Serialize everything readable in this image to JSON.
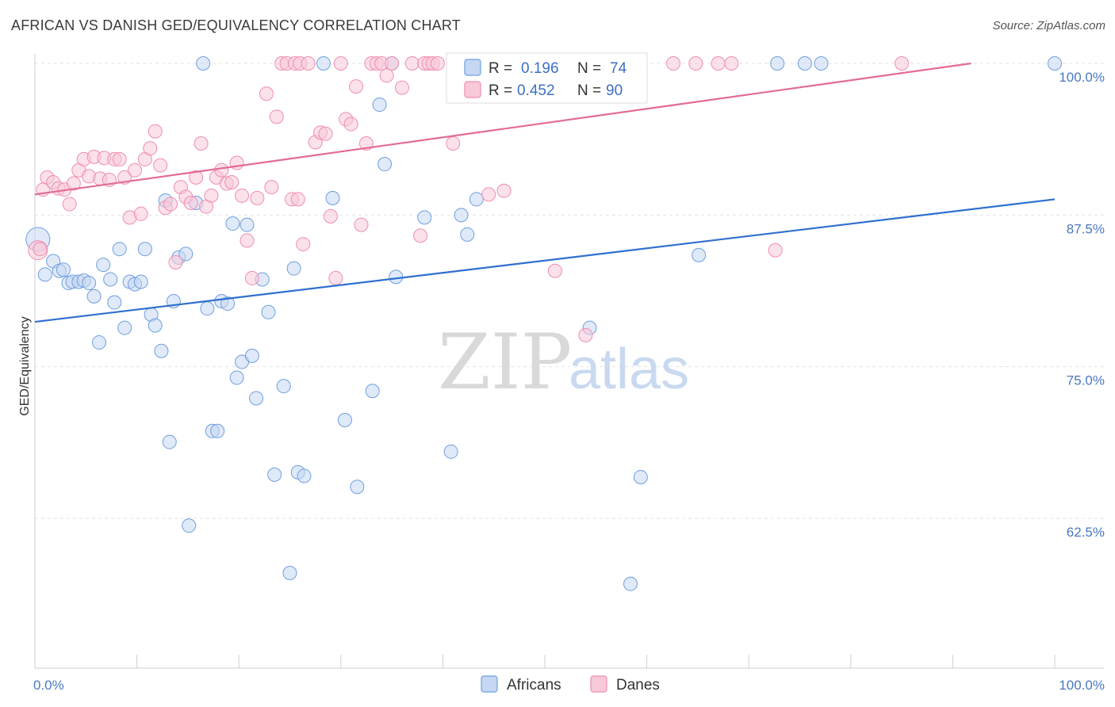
{
  "title": "AFRICAN VS DANISH GED/EQUIVALENCY CORRELATION CHART",
  "source": "Source: ZipAtlas.com",
  "watermark": {
    "zip": "ZIP",
    "atlas": "atlas"
  },
  "colors": {
    "africans": "#6f9fe0",
    "danes": "#f08db0",
    "africans_line": "#2f6fd0",
    "danes_line": "#e46b95",
    "tick": "#4a78c2"
  },
  "chart_data": {
    "type": "scatter",
    "title": "AFRICAN VS DANISH GED/EQUIVALENCY CORRELATION CHART",
    "xlabel": "",
    "ylabel": "GED/Equivalency",
    "xlim": [
      0,
      100
    ],
    "ylim": [
      50,
      101
    ],
    "x_tick_labels": [
      {
        "value": 0,
        "label": "0.0%"
      },
      {
        "value": 100,
        "label": "100.0%"
      }
    ],
    "y_tick_labels": [
      {
        "value": 100,
        "label": "100.0%"
      },
      {
        "value": 87.5,
        "label": "87.5%"
      },
      {
        "value": 75,
        "label": "75.0%"
      },
      {
        "value": 62.5,
        "label": "62.5%"
      }
    ],
    "grid": true,
    "legend_position": "top-center",
    "legend": [
      {
        "series": "Africans",
        "r_label": "R =",
        "r": "0.196",
        "n_label": "N =",
        "n": "74"
      },
      {
        "series": "Danes",
        "r_label": "R =",
        "r": "0.452",
        "n_label": "N =",
        "n": "90"
      }
    ],
    "series": [
      {
        "name": "Africans",
        "trend": {
          "x": [
            0,
            100
          ],
          "y": [
            78.7,
            88.8
          ]
        },
        "points": [
          [
            0.3,
            85.5
          ],
          [
            1.0,
            82.6
          ],
          [
            1.8,
            83.7
          ],
          [
            2.4,
            82.9
          ],
          [
            2.8,
            83.0
          ],
          [
            3.3,
            81.9
          ],
          [
            3.7,
            82.0
          ],
          [
            4.3,
            82.0
          ],
          [
            4.8,
            82.1
          ],
          [
            5.3,
            81.9
          ],
          [
            5.8,
            80.8
          ],
          [
            6.3,
            77.0
          ],
          [
            6.7,
            83.4
          ],
          [
            7.4,
            82.2
          ],
          [
            7.8,
            80.3
          ],
          [
            8.3,
            84.7
          ],
          [
            8.8,
            78.2
          ],
          [
            9.3,
            82.0
          ],
          [
            9.8,
            81.8
          ],
          [
            10.4,
            82.0
          ],
          [
            10.8,
            84.7
          ],
          [
            11.4,
            79.3
          ],
          [
            11.8,
            78.4
          ],
          [
            12.4,
            76.3
          ],
          [
            12.8,
            88.7
          ],
          [
            13.2,
            68.8
          ],
          [
            13.6,
            80.4
          ],
          [
            14.1,
            84.0
          ],
          [
            14.8,
            84.3
          ],
          [
            15.1,
            61.9
          ],
          [
            15.8,
            88.5
          ],
          [
            16.5,
            100
          ],
          [
            16.9,
            79.8
          ],
          [
            17.4,
            69.7
          ],
          [
            17.9,
            69.7
          ],
          [
            18.3,
            80.4
          ],
          [
            18.9,
            80.2
          ],
          [
            19.4,
            86.8
          ],
          [
            19.8,
            74.1
          ],
          [
            20.3,
            75.4
          ],
          [
            20.8,
            86.7
          ],
          [
            21.3,
            75.9
          ],
          [
            21.7,
            72.4
          ],
          [
            22.3,
            82.2
          ],
          [
            22.9,
            79.5
          ],
          [
            23.5,
            66.1
          ],
          [
            24.4,
            73.4
          ],
          [
            25.0,
            58.0
          ],
          [
            25.4,
            83.1
          ],
          [
            25.8,
            66.3
          ],
          [
            26.4,
            66.0
          ],
          [
            28.3,
            100
          ],
          [
            29.2,
            88.9
          ],
          [
            30.4,
            70.6
          ],
          [
            31.6,
            65.1
          ],
          [
            33.1,
            73.0
          ],
          [
            33.8,
            96.6
          ],
          [
            34.3,
            91.7
          ],
          [
            35.0,
            100
          ],
          [
            35.4,
            82.4
          ],
          [
            38.2,
            87.3
          ],
          [
            40.8,
            68.0
          ],
          [
            41.8,
            87.5
          ],
          [
            42.4,
            85.9
          ],
          [
            43.3,
            88.8
          ],
          [
            51.0,
            100
          ],
          [
            54.4,
            78.2
          ],
          [
            58.4,
            57.1
          ],
          [
            59.4,
            65.9
          ],
          [
            65.1,
            84.2
          ],
          [
            72.8,
            100
          ],
          [
            75.5,
            100
          ],
          [
            77.1,
            100
          ],
          [
            100,
            100
          ]
        ]
      },
      {
        "name": "Danes",
        "trend": {
          "x": [
            0,
            91.8
          ],
          "y": [
            89.2,
            100
          ]
        },
        "points": [
          [
            0.3,
            84.6
          ],
          [
            0.5,
            84.7
          ],
          [
            0.8,
            89.6
          ],
          [
            1.2,
            90.6
          ],
          [
            1.8,
            90.2
          ],
          [
            2.3,
            89.7
          ],
          [
            2.9,
            89.6
          ],
          [
            3.4,
            88.4
          ],
          [
            3.8,
            90.1
          ],
          [
            4.3,
            91.2
          ],
          [
            4.8,
            92.1
          ],
          [
            5.3,
            90.7
          ],
          [
            5.8,
            92.3
          ],
          [
            6.4,
            90.5
          ],
          [
            6.8,
            92.2
          ],
          [
            7.3,
            90.4
          ],
          [
            7.8,
            92.1
          ],
          [
            8.3,
            92.1
          ],
          [
            8.8,
            90.6
          ],
          [
            9.3,
            87.3
          ],
          [
            9.8,
            91.2
          ],
          [
            10.4,
            87.6
          ],
          [
            10.8,
            92.1
          ],
          [
            11.3,
            93.0
          ],
          [
            11.8,
            94.4
          ],
          [
            12.3,
            91.6
          ],
          [
            12.8,
            88.1
          ],
          [
            13.3,
            88.4
          ],
          [
            13.8,
            83.6
          ],
          [
            14.3,
            89.8
          ],
          [
            14.8,
            89.0
          ],
          [
            15.3,
            88.5
          ],
          [
            15.8,
            90.6
          ],
          [
            16.3,
            93.4
          ],
          [
            16.8,
            88.2
          ],
          [
            17.3,
            89.1
          ],
          [
            17.8,
            90.6
          ],
          [
            18.3,
            91.2
          ],
          [
            18.8,
            90.1
          ],
          [
            19.3,
            90.2
          ],
          [
            19.8,
            91.8
          ],
          [
            20.3,
            89.1
          ],
          [
            20.8,
            85.4
          ],
          [
            21.3,
            82.3
          ],
          [
            21.8,
            88.9
          ],
          [
            22.7,
            97.5
          ],
          [
            23.2,
            89.8
          ],
          [
            23.7,
            95.6
          ],
          [
            24.2,
            100
          ],
          [
            24.7,
            100
          ],
          [
            25.2,
            88.8
          ],
          [
            25.5,
            100
          ],
          [
            25.8,
            88.8
          ],
          [
            26.0,
            100
          ],
          [
            26.3,
            85.1
          ],
          [
            26.8,
            100
          ],
          [
            27.5,
            93.5
          ],
          [
            28.0,
            94.3
          ],
          [
            28.5,
            94.2
          ],
          [
            29.0,
            87.4
          ],
          [
            29.5,
            82.3
          ],
          [
            30.0,
            100
          ],
          [
            30.5,
            95.4
          ],
          [
            31.0,
            95.0
          ],
          [
            31.5,
            98.1
          ],
          [
            32.0,
            86.7
          ],
          [
            32.5,
            93.4
          ],
          [
            33.0,
            100
          ],
          [
            33.5,
            100
          ],
          [
            34.0,
            100
          ],
          [
            34.5,
            99.0
          ],
          [
            35.0,
            100
          ],
          [
            36.0,
            98.0
          ],
          [
            37.0,
            100
          ],
          [
            37.8,
            85.8
          ],
          [
            38.2,
            100
          ],
          [
            38.6,
            100
          ],
          [
            39.0,
            100
          ],
          [
            39.5,
            100
          ],
          [
            41.0,
            93.4
          ],
          [
            44.5,
            89.2
          ],
          [
            46.0,
            89.5
          ],
          [
            51.0,
            82.9
          ],
          [
            54.0,
            77.6
          ],
          [
            62.6,
            100
          ],
          [
            64.8,
            100
          ],
          [
            67.0,
            100
          ],
          [
            68.3,
            100
          ],
          [
            72.6,
            84.6
          ],
          [
            85.0,
            100
          ]
        ]
      }
    ]
  }
}
